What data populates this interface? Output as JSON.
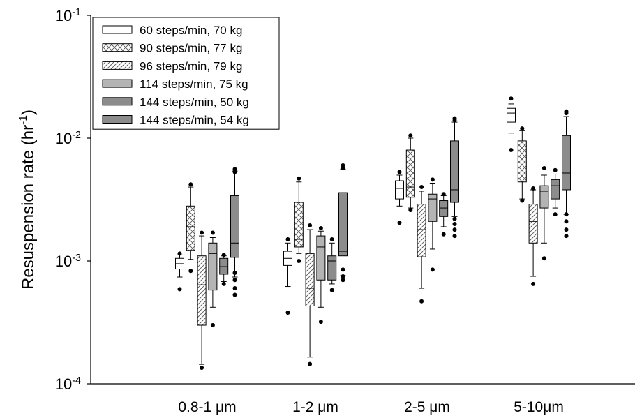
{
  "chart_data": {
    "type": "box",
    "y_label": "Resuspension rate (hr-1)",
    "categories": [
      "0.8-1 μm",
      "1-2 μm",
      "2-5 μm",
      "5-10μm"
    ],
    "ylim": [
      0.0001,
      0.1
    ],
    "log_scale": true,
    "yticks": [
      {
        "value": 0.0001,
        "label": "10-4"
      },
      {
        "value": 0.001,
        "label": "10-3"
      },
      {
        "value": 0.01,
        "label": "10-2"
      },
      {
        "value": 0.1,
        "label": "10-1"
      }
    ],
    "legend": "upper left",
    "series": [
      {
        "name": "60 steps/min, 70 kg",
        "color": "#ffffff",
        "pattern": null,
        "boxes": [
          [
            0.00074,
            0.00086,
            0.00095,
            0.00105,
            0.00112
          ],
          [
            0.00062,
            0.00092,
            0.00105,
            0.0012,
            0.0014
          ],
          [
            0.0028,
            0.0032,
            0.0039,
            0.0045,
            0.005
          ],
          [
            0.011,
            0.0135,
            0.016,
            0.0175,
            0.019
          ]
        ],
        "outliers": [
          [
            0.00115,
            0.00059
          ],
          [
            0.0015,
            0.00038
          ],
          [
            0.0053,
            0.00205
          ],
          [
            0.021,
            0.008
          ]
        ]
      },
      {
        "name": "90 steps/min, 77 kg",
        "color": "#ffffff",
        "pattern": "cross",
        "boxes": [
          [
            0.00103,
            0.00122,
            0.0019,
            0.0028,
            0.004
          ],
          [
            0.00115,
            0.0013,
            0.0015,
            0.003,
            0.0044
          ],
          [
            0.0027,
            0.0033,
            0.004,
            0.008,
            0.01
          ],
          [
            0.0032,
            0.0044,
            0.0053,
            0.0095,
            0.0115
          ]
        ],
        "outliers": [
          [
            0.0042,
            0.00083
          ],
          [
            0.0047,
            0.001
          ],
          [
            0.0105,
            0.0026
          ],
          [
            0.012,
            0.0031
          ]
        ]
      },
      {
        "name": "96 steps/min, 79 kg",
        "color": "#ffffff",
        "pattern": "hatch",
        "boxes": [
          [
            0.000144,
            0.0003,
            0.00064,
            0.0011,
            0.0016
          ],
          [
            0.000165,
            0.00043,
            0.0006,
            0.00115,
            0.0018
          ],
          [
            0.0006,
            0.00108,
            0.0018,
            0.0029,
            0.0037
          ],
          [
            0.00075,
            0.0014,
            0.0021,
            0.0029,
            0.0038
          ]
        ],
        "outliers": [
          [
            0.0017,
            0.000135
          ],
          [
            0.00195,
            0.000145
          ],
          [
            0.004,
            0.00047
          ],
          [
            0.0039,
            0.00065
          ]
        ]
      },
      {
        "name": "114 steps/min, 75 kg",
        "color": "#b4b4b4",
        "pattern": null,
        "boxes": [
          [
            0.00042,
            0.00058,
            0.00115,
            0.0014,
            0.00155
          ],
          [
            0.00042,
            0.0007,
            0.0013,
            0.0016,
            0.00175
          ],
          [
            0.00125,
            0.0021,
            0.0032,
            0.0035,
            0.0043
          ],
          [
            0.0014,
            0.0027,
            0.0037,
            0.0041,
            0.005
          ]
        ],
        "outliers": [
          [
            0.0017,
            0.0003
          ],
          [
            0.00185,
            0.00032
          ],
          [
            0.0046,
            0.00085
          ],
          [
            0.0057,
            0.00105
          ]
        ]
      },
      {
        "name": "144 steps/min, 50 kg",
        "color": "#8c8c8c",
        "pattern": null,
        "boxes": [
          [
            0.00068,
            0.00078,
            0.0009,
            0.00105,
            0.0011
          ],
          [
            0.00065,
            0.0007,
            0.001,
            0.0011,
            0.0014
          ],
          [
            0.0019,
            0.0023,
            0.0027,
            0.0031,
            0.0034
          ],
          [
            0.0027,
            0.0032,
            0.0041,
            0.0046,
            0.0051
          ]
        ],
        "outliers": [
          [
            0.00112,
            0.00065
          ],
          [
            0.0015,
            0.00058
          ],
          [
            0.0035,
            0.00165
          ],
          [
            0.0055,
            0.0024
          ]
        ]
      },
      {
        "name": "144 steps/min, 54 kg",
        "color": "#8c8c8c",
        "pattern": null,
        "boxes": [
          [
            0.00074,
            0.00107,
            0.0014,
            0.0034,
            0.0054
          ],
          [
            0.00076,
            0.0011,
            0.0012,
            0.0036,
            0.0056
          ],
          [
            0.0023,
            0.003,
            0.0038,
            0.0095,
            0.0135
          ],
          [
            0.0024,
            0.0038,
            0.0052,
            0.0105,
            0.015
          ]
        ],
        "outliers": [
          [
            0.0056,
            0.0053,
            0.0008,
            0.0007,
            0.0006,
            0.00053
          ],
          [
            0.006,
            0.0057,
            0.00085,
            0.00075,
            0.0007
          ],
          [
            0.0145,
            0.014,
            0.0022,
            0.002,
            0.0018,
            0.0016
          ],
          [
            0.0165,
            0.016,
            0.0024,
            0.0021,
            0.0018,
            0.0016
          ]
        ]
      }
    ]
  }
}
